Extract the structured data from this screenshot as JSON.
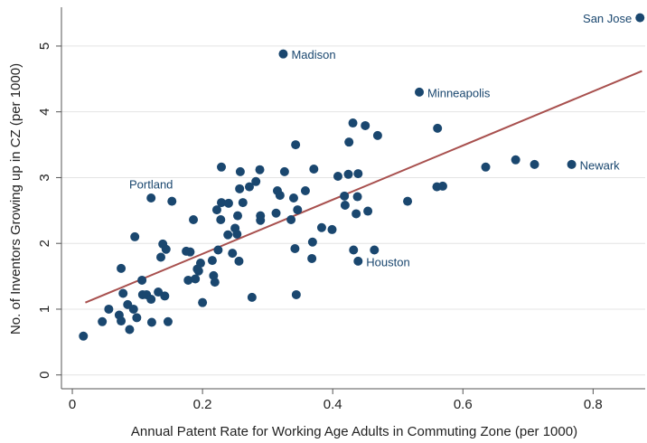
{
  "chart_data": {
    "type": "scatter",
    "x_label": "Annual Patent Rate for Working Age Adults in Commuting Zone (per 1000)",
    "y_label": "No. of Inventors Growing up in CZ (per 1000)",
    "xlim": [
      -0.0167,
      0.88
    ],
    "ylim": [
      -0.21,
      5.59
    ],
    "xticks": [
      0,
      0.2,
      0.4,
      0.6,
      0.8
    ],
    "yticks": [
      0,
      1,
      2,
      3,
      4,
      5
    ],
    "grid": true,
    "series": [
      {
        "color": "#1a476f",
        "x": [
          0.017,
          0.046,
          0.056,
          0.072,
          0.075,
          0.075,
          0.078,
          0.088,
          0.085,
          0.094,
          0.099,
          0.096,
          0.107,
          0.108,
          0.114,
          0.121,
          0.122,
          0.121,
          0.132,
          0.136,
          0.139,
          0.144,
          0.142,
          0.147,
          0.153,
          0.175,
          0.181,
          0.178,
          0.186,
          0.189,
          0.194,
          0.197,
          0.192,
          0.2,
          0.215,
          0.217,
          0.219,
          0.222,
          0.224,
          0.229,
          0.229,
          0.228,
          0.239,
          0.24,
          0.246,
          0.25,
          0.253,
          0.254,
          0.256,
          0.258,
          0.257,
          0.262,
          0.272,
          0.282,
          0.276,
          0.289,
          0.289,
          0.288,
          0.313,
          0.315,
          0.324,
          0.326,
          0.319,
          0.336,
          0.34,
          0.343,
          0.342,
          0.346,
          0.344,
          0.358,
          0.369,
          0.368,
          0.371,
          0.383,
          0.399,
          0.408,
          0.418,
          0.419,
          0.425,
          0.424,
          0.432,
          0.431,
          0.439,
          0.438,
          0.436,
          0.439,
          0.45,
          0.454,
          0.464,
          0.469,
          0.515,
          0.533,
          0.561,
          0.56,
          0.569,
          0.635,
          0.681,
          0.71,
          0.767,
          0.872
        ],
        "values": [
          0.59,
          0.81,
          1.0,
          0.91,
          0.82,
          1.62,
          1.24,
          0.69,
          1.07,
          1.0,
          0.87,
          2.1,
          1.44,
          1.22,
          1.22,
          1.15,
          0.8,
          2.69,
          1.26,
          1.79,
          1.99,
          1.91,
          1.2,
          0.81,
          2.64,
          1.88,
          1.87,
          1.44,
          2.36,
          1.46,
          1.58,
          1.7,
          1.61,
          1.1,
          1.74,
          1.51,
          1.41,
          2.51,
          1.9,
          3.16,
          2.62,
          2.36,
          2.13,
          2.61,
          1.85,
          2.23,
          2.14,
          2.42,
          1.73,
          3.09,
          2.83,
          2.62,
          2.86,
          2.94,
          1.18,
          2.42,
          2.35,
          3.12,
          2.46,
          2.8,
          4.88,
          3.09,
          2.73,
          2.36,
          2.69,
          3.5,
          1.92,
          2.51,
          1.22,
          2.8,
          2.02,
          1.77,
          3.13,
          2.24,
          2.21,
          3.02,
          2.72,
          2.58,
          3.54,
          3.05,
          1.9,
          3.83,
          3.06,
          2.71,
          2.45,
          1.73,
          3.79,
          2.49,
          1.9,
          3.64,
          2.64,
          4.3,
          3.75,
          2.86,
          2.87,
          3.16,
          3.27,
          3.2,
          3.2,
          5.43
        ],
        "labels": [
          null,
          null,
          null,
          null,
          null,
          null,
          null,
          null,
          null,
          null,
          null,
          null,
          null,
          null,
          null,
          null,
          null,
          "Portland",
          null,
          null,
          null,
          null,
          null,
          null,
          null,
          null,
          null,
          null,
          null,
          null,
          null,
          null,
          null,
          null,
          null,
          null,
          null,
          null,
          null,
          null,
          null,
          null,
          null,
          null,
          null,
          null,
          null,
          null,
          null,
          null,
          null,
          null,
          null,
          null,
          null,
          null,
          null,
          null,
          null,
          null,
          "Madison",
          null,
          null,
          null,
          null,
          null,
          null,
          null,
          null,
          null,
          null,
          null,
          null,
          null,
          null,
          null,
          null,
          null,
          null,
          null,
          null,
          null,
          null,
          null,
          null,
          "Houston",
          null,
          null,
          null,
          null,
          null,
          "Minneapolis",
          null,
          null,
          null,
          null,
          null,
          null,
          "Newark",
          "San Jose"
        ]
      }
    ],
    "fit": {
      "color": "#a8504e",
      "x": [
        0.02,
        0.875
      ],
      "values": [
        1.1,
        4.62
      ]
    }
  }
}
